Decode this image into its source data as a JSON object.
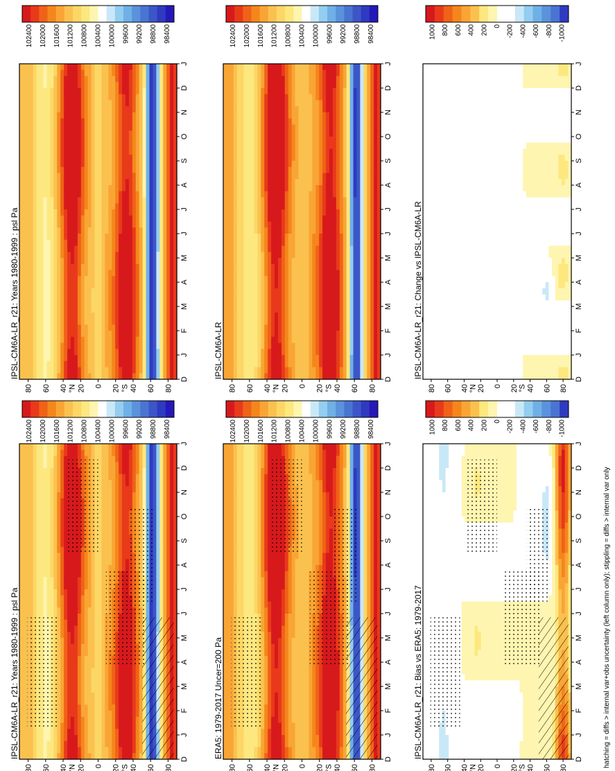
{
  "figure": {
    "footer": "hatching = diffs > internal var+obs uncertainty (left column only); stippling = diffs > internal var only"
  },
  "colors": {
    "abs_scale": [
      "#d7191c",
      "#e83a1a",
      "#f06218",
      "#f5861c",
      "#f9a535",
      "#fbc14f",
      "#fcd766",
      "#fde880",
      "#fef5b0",
      "#ffffff",
      "#c9e8f7",
      "#93cdf0",
      "#6fb0e6",
      "#5a92dc",
      "#4a74d2",
      "#3c56c8",
      "#2e3ac0",
      "#2518b8"
    ],
    "diff_scale": [
      "#d7191c",
      "#e83a1a",
      "#f06218",
      "#f5861c",
      "#f9a535",
      "#fbc14f",
      "#fde880",
      "#fef5b0",
      "#ffffff",
      "#ffffff",
      "#c9e8f7",
      "#93cdf0",
      "#6fb0e6",
      "#5a92dc",
      "#4a74d2",
      "#2e3ac0"
    ]
  },
  "chart_data": [
    {
      "type": "heatmap",
      "panel": "row1-left",
      "title": "IPSL-CM6A-LR_r21: Years 1980-1999 : psl Pa",
      "months": [
        "D",
        "J",
        "F",
        "M",
        "A",
        "M",
        "J",
        "J",
        "A",
        "S",
        "O",
        "N",
        "D",
        "J"
      ],
      "lat_ticks": [
        "80",
        "60",
        "40",
        "20",
        "0",
        "20",
        "40",
        "60",
        "80"
      ],
      "lat_labels": [
        "N",
        "S"
      ],
      "colorbar_labels": [
        "102400",
        "102000",
        "101600",
        "101200",
        "100800",
        "100400",
        "100000",
        "99600",
        "99200",
        "98800",
        "98400"
      ],
      "colorbar_range": [
        98400,
        102400
      ],
      "stippled": true,
      "hatched": true,
      "kind": "abs"
    },
    {
      "type": "heatmap",
      "panel": "row1-right",
      "title": "IPSL-CM6A-LR_r21: Years 1980-1999 : psl Pa",
      "months": [
        "D",
        "J",
        "F",
        "M",
        "A",
        "M",
        "J",
        "J",
        "A",
        "S",
        "O",
        "N",
        "D",
        "J"
      ],
      "lat_ticks": [
        "80",
        "60",
        "40",
        "20",
        "0",
        "20",
        "40",
        "60",
        "80"
      ],
      "lat_labels": [
        "N",
        "S"
      ],
      "colorbar_labels": [
        "102400",
        "102000",
        "101600",
        "101200",
        "100800",
        "100400",
        "100000",
        "99600",
        "99200",
        "98800",
        "98400"
      ],
      "colorbar_range": [
        98400,
        102400
      ],
      "stippled": false,
      "hatched": false,
      "kind": "abs"
    },
    {
      "type": "heatmap",
      "panel": "row2-left",
      "title": "ERA5: 1979-2017 Uncer=200 Pa",
      "months": [
        "D",
        "J",
        "F",
        "M",
        "A",
        "M",
        "J",
        "J",
        "A",
        "S",
        "O",
        "N",
        "D",
        "J"
      ],
      "lat_ticks": [
        "80",
        "60",
        "40",
        "20",
        "0",
        "20",
        "40",
        "60",
        "80"
      ],
      "lat_labels": [
        "N",
        "S"
      ],
      "colorbar_labels": [
        "102400",
        "102000",
        "101600",
        "101200",
        "100800",
        "100400",
        "100000",
        "99600",
        "99200",
        "98800",
        "98400"
      ],
      "colorbar_range": [
        98400,
        102400
      ],
      "stippled": true,
      "hatched": true,
      "kind": "abs"
    },
    {
      "type": "heatmap",
      "panel": "row2-right",
      "title": "IPSL-CM6A-LR",
      "months": [
        "D",
        "J",
        "F",
        "M",
        "A",
        "M",
        "J",
        "J",
        "A",
        "S",
        "O",
        "N",
        "D",
        "J"
      ],
      "lat_ticks": [
        "80",
        "60",
        "40",
        "20",
        "0",
        "20",
        "40",
        "60",
        "80"
      ],
      "lat_labels": [
        "N",
        "S"
      ],
      "colorbar_labels": [
        "102400",
        "102000",
        "101600",
        "101200",
        "100800",
        "100400",
        "100000",
        "99600",
        "99200",
        "98800",
        "98400"
      ],
      "colorbar_range": [
        98400,
        102400
      ],
      "stippled": false,
      "hatched": false,
      "kind": "abs"
    },
    {
      "type": "heatmap",
      "panel": "row3-left",
      "title": "IPSL-CM6A-LR_r21: Bias vs ERA5: 1979-2017",
      "months": [
        "D",
        "J",
        "F",
        "M",
        "A",
        "M",
        "J",
        "J",
        "A",
        "S",
        "O",
        "N",
        "D",
        "J"
      ],
      "lat_ticks": [
        "80",
        "60",
        "40",
        "20",
        "0",
        "20",
        "40",
        "60",
        "80"
      ],
      "lat_labels": [
        "N",
        "S"
      ],
      "colorbar_labels": [
        "1000",
        "800",
        "600",
        "400",
        "200",
        "0",
        "-200",
        "-400",
        "-600",
        "-800",
        "-1000"
      ],
      "colorbar_range": [
        -1000,
        1000
      ],
      "stippled": true,
      "hatched": true,
      "kind": "bias"
    },
    {
      "type": "heatmap",
      "panel": "row3-right",
      "title": "IPSL-CM6A-LR_r21: Change vs IPSL-CM6A-LR",
      "months": [
        "D",
        "J",
        "F",
        "M",
        "A",
        "M",
        "J",
        "J",
        "A",
        "S",
        "O",
        "N",
        "D",
        "J"
      ],
      "lat_ticks": [
        "80",
        "60",
        "40",
        "20",
        "0",
        "20",
        "40",
        "60",
        "80"
      ],
      "lat_labels": [
        "N",
        "S"
      ],
      "colorbar_labels": [
        "1000",
        "800",
        "600",
        "400",
        "200",
        "0",
        "-200",
        "-400",
        "-600",
        "-800",
        "-1000"
      ],
      "colorbar_range": [
        -1000,
        1000
      ],
      "stippled": false,
      "hatched": false,
      "kind": "change"
    }
  ]
}
